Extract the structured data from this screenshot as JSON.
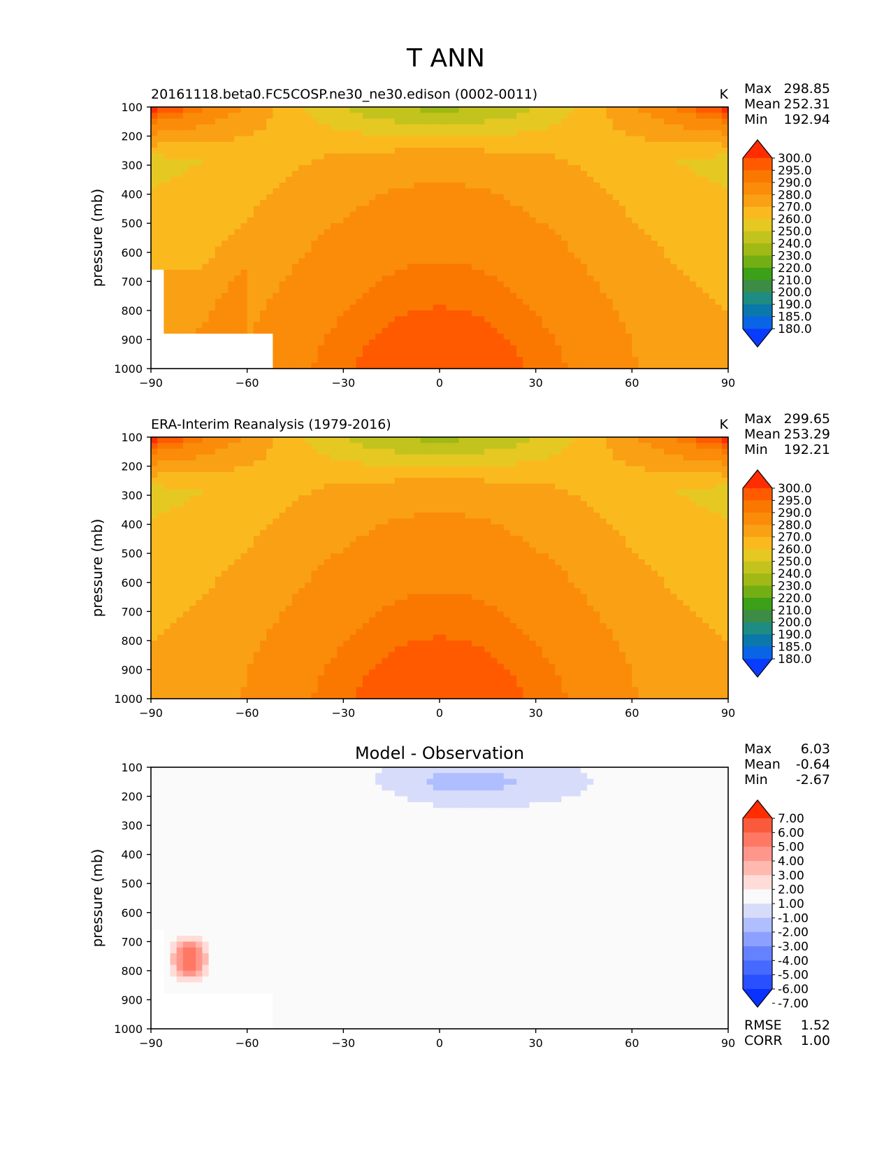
{
  "figure": {
    "title": "T ANN"
  },
  "colors": {
    "abs_levels": [
      "#0a3cff",
      "#0a64e6",
      "#0a78aa",
      "#1e8c82",
      "#3c8c46",
      "#3ca018",
      "#73af14",
      "#a0b914",
      "#c3c31e",
      "#e6c823",
      "#faba1e",
      "#faa014",
      "#fa8c0a",
      "#fa7800",
      "#ff5a00",
      "#ff2d00"
    ],
    "diff_levels": [
      "#0a32ff",
      "#2850ff",
      "#4669ff",
      "#6482ff",
      "#8ca0ff",
      "#afbeff",
      "#d7dcfa",
      "#fafafa",
      "#ffdcd7",
      "#ffb9af",
      "#ff968c",
      "#ff7864",
      "#fa5a3c",
      "#ff2d00"
    ]
  },
  "chart_data": [
    {
      "id": "model",
      "type": "heatmap",
      "title": "",
      "left_title": "20161118.beta0.FC5COSP.ne30_ne30.edison (0002-0011)",
      "units": "K",
      "ylabel": "pressure (mb)",
      "xlabel": "",
      "xticks": [
        "−90",
        "−60",
        "−30",
        "0",
        "30",
        "60",
        "90"
      ],
      "yticks": [
        "100",
        "200",
        "300",
        "400",
        "500",
        "600",
        "700",
        "800",
        "900",
        "1000"
      ],
      "xlim": [
        -90,
        90
      ],
      "ylim": [
        1000,
        100
      ],
      "stats": [
        {
          "label": "Max",
          "value": "298.85"
        },
        {
          "label": "Mean",
          "value": "252.31"
        },
        {
          "label": "Min",
          "value": "192.94"
        }
      ],
      "colorbar_ticks": [
        "300.0",
        "295.0",
        "290.0",
        "280.0",
        "270.0",
        "260.0",
        "250.0",
        "240.0",
        "230.0",
        "220.0",
        "210.0",
        "200.0",
        "190.0",
        "185.0",
        "180.0"
      ],
      "colorbar_extend": "both"
    },
    {
      "id": "obs",
      "type": "heatmap",
      "title": "",
      "left_title": "ERA-Interim Reanalysis (1979-2016)",
      "units": "K",
      "ylabel": "pressure (mb)",
      "xlabel": "",
      "xticks": [
        "−90",
        "−60",
        "−30",
        "0",
        "30",
        "60",
        "90"
      ],
      "yticks": [
        "100",
        "200",
        "300",
        "400",
        "500",
        "600",
        "700",
        "800",
        "900",
        "1000"
      ],
      "xlim": [
        -90,
        90
      ],
      "ylim": [
        1000,
        100
      ],
      "stats": [
        {
          "label": "Max",
          "value": "299.65"
        },
        {
          "label": "Mean",
          "value": "253.29"
        },
        {
          "label": "Min",
          "value": "192.21"
        }
      ],
      "colorbar_ticks": [
        "300.0",
        "295.0",
        "290.0",
        "280.0",
        "270.0",
        "260.0",
        "250.0",
        "240.0",
        "230.0",
        "220.0",
        "210.0",
        "200.0",
        "190.0",
        "185.0",
        "180.0"
      ],
      "colorbar_extend": "both"
    },
    {
      "id": "diff",
      "type": "heatmap",
      "title": "Model - Observation",
      "left_title": "",
      "units": "",
      "ylabel": "pressure (mb)",
      "xlabel": "",
      "xticks": [
        "−90",
        "−60",
        "−30",
        "0",
        "30",
        "60",
        "90"
      ],
      "yticks": [
        "100",
        "200",
        "300",
        "400",
        "500",
        "600",
        "700",
        "800",
        "900",
        "1000"
      ],
      "xlim": [
        -90,
        90
      ],
      "ylim": [
        1000,
        100
      ],
      "stats": [
        {
          "label": "Max",
          "value": "6.03"
        },
        {
          "label": "Mean",
          "value": "-0.64"
        },
        {
          "label": "Min",
          "value": "-2.67"
        }
      ],
      "colorbar_ticks": [
        "7.00",
        "6.00",
        "5.00",
        "4.00",
        "3.00",
        "2.00",
        "1.00",
        "-1.00",
        "-2.00",
        "-3.00",
        "-4.00",
        "-5.00",
        "-6.00",
        "-7.00"
      ],
      "colorbar_extend": "both",
      "metrics": [
        {
          "label": "RMSE",
          "value": "1.52"
        },
        {
          "label": "CORR",
          "value": "1.00"
        }
      ]
    }
  ]
}
